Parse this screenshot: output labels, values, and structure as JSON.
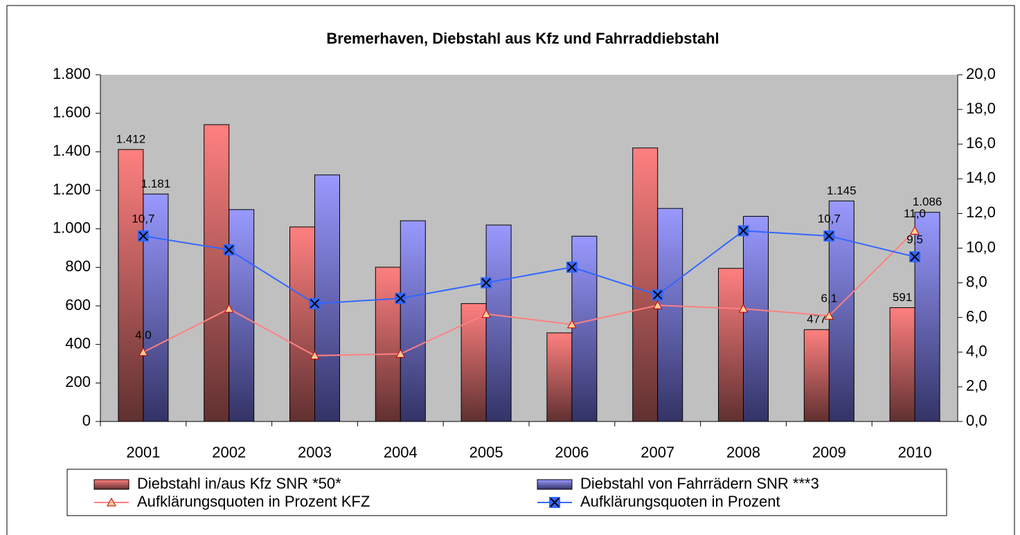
{
  "chart_data": {
    "type": "bar-line",
    "title": "Bremerhaven, Diebstahl aus Kfz und Fahrraddiebstahl",
    "categories": [
      "2001",
      "2002",
      "2003",
      "2004",
      "2005",
      "2006",
      "2007",
      "2008",
      "2009",
      "2010"
    ],
    "series": [
      {
        "name": "Diebstahl in/aus Kfz SNR *50*",
        "type": "bar",
        "color": "#ff8080",
        "values": [
          1412,
          1541,
          1010,
          801,
          612,
          460,
          1420,
          795,
          477,
          591
        ],
        "value_labels": [
          "1.412",
          null,
          null,
          null,
          null,
          null,
          null,
          null,
          "477",
          "591"
        ]
      },
      {
        "name": "Diebstahl von Fahrrädern SNR ***3",
        "type": "bar",
        "color": "#9999ff",
        "values": [
          1181,
          1100,
          1280,
          1042,
          1020,
          962,
          1106,
          1065,
          1145,
          1086
        ],
        "value_labels": [
          "1.181",
          null,
          null,
          null,
          null,
          null,
          null,
          null,
          "1.145",
          "1.086"
        ]
      },
      {
        "name": "Aufklärungsquoten in Prozent KFZ",
        "type": "line",
        "axis": "y2",
        "color": "#ff8080",
        "values": [
          4.0,
          6.5,
          3.8,
          3.9,
          6.2,
          5.6,
          6.7,
          6.5,
          6.1,
          11.0
        ],
        "value_labels": [
          "4,0",
          null,
          null,
          null,
          null,
          null,
          null,
          null,
          "6,1",
          "11,0"
        ]
      },
      {
        "name": "Aufklärungsquoten in Prozent",
        "type": "line",
        "axis": "y2",
        "color": "#3366ff",
        "values": [
          10.7,
          9.9,
          6.8,
          7.1,
          8.0,
          8.9,
          7.3,
          11.0,
          10.7,
          9.5
        ],
        "value_labels": [
          "10,7",
          null,
          null,
          null,
          null,
          null,
          null,
          null,
          "10,7",
          "9,5"
        ]
      }
    ],
    "ylim": [
      0,
      1800
    ],
    "yticks": [
      0,
      200,
      400,
      600,
      800,
      {
        "value": 1000,
        "label": "1.000"
      },
      {
        "value": 1200,
        "label": "1.200"
      },
      {
        "value": 1400,
        "label": "1.400"
      },
      {
        "value": 1600,
        "label": "1.600"
      },
      {
        "value": 1800,
        "label": "1.800"
      }
    ],
    "y2lim": [
      0,
      20
    ],
    "y2ticks": [
      {
        "value": 0,
        "label": "0,0"
      },
      {
        "value": 2,
        "label": "2,0"
      },
      {
        "value": 4,
        "label": "4,0"
      },
      {
        "value": 6,
        "label": "6,0"
      },
      {
        "value": 8,
        "label": "8,0"
      },
      {
        "value": 10,
        "label": "10,0"
      },
      {
        "value": 12,
        "label": "12,0"
      },
      {
        "value": 14,
        "label": "14,0"
      },
      {
        "value": 16,
        "label": "16,0"
      },
      {
        "value": 18,
        "label": "18,0"
      },
      {
        "value": 20,
        "label": "20,0"
      }
    ],
    "legend": "bottom"
  }
}
